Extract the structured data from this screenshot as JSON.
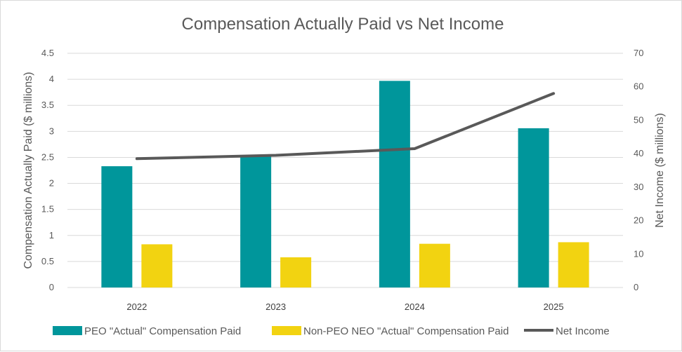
{
  "chart_data": {
    "type": "bar",
    "title": "Compensation Actually Paid vs Net Income",
    "categories": [
      "2022",
      "2023",
      "2024",
      "2025"
    ],
    "y_left": {
      "label": "Compensation Actually Paid ($ millions)",
      "ylim": [
        0,
        4.5
      ],
      "ticks": [
        "0",
        "0.5",
        "1",
        "1.5",
        "2",
        "2.5",
        "3",
        "3.5",
        "4",
        "4.5"
      ]
    },
    "y_right": {
      "label": "Net Income ($ millions)",
      "ylim": [
        0,
        70
      ],
      "ticks": [
        "0",
        "10",
        "20",
        "30",
        "40",
        "50",
        "60",
        "70"
      ]
    },
    "series": [
      {
        "name": "PEO \"Actual\" Compensation Paid",
        "type": "bar",
        "axis": "left",
        "color": "#00969b",
        "values": [
          2.33,
          2.53,
          3.97,
          3.06
        ]
      },
      {
        "name": "Non-PEO NEO \"Actual\" Compensation Paid",
        "type": "bar",
        "axis": "left",
        "color": "#f2d311",
        "values": [
          0.83,
          0.58,
          0.84,
          0.87
        ]
      },
      {
        "name": "Net Income",
        "type": "line",
        "axis": "right",
        "color": "#595959",
        "values": [
          38.5,
          39.5,
          41.5,
          58
        ]
      }
    ],
    "grid": true,
    "legend_position": "bottom"
  }
}
